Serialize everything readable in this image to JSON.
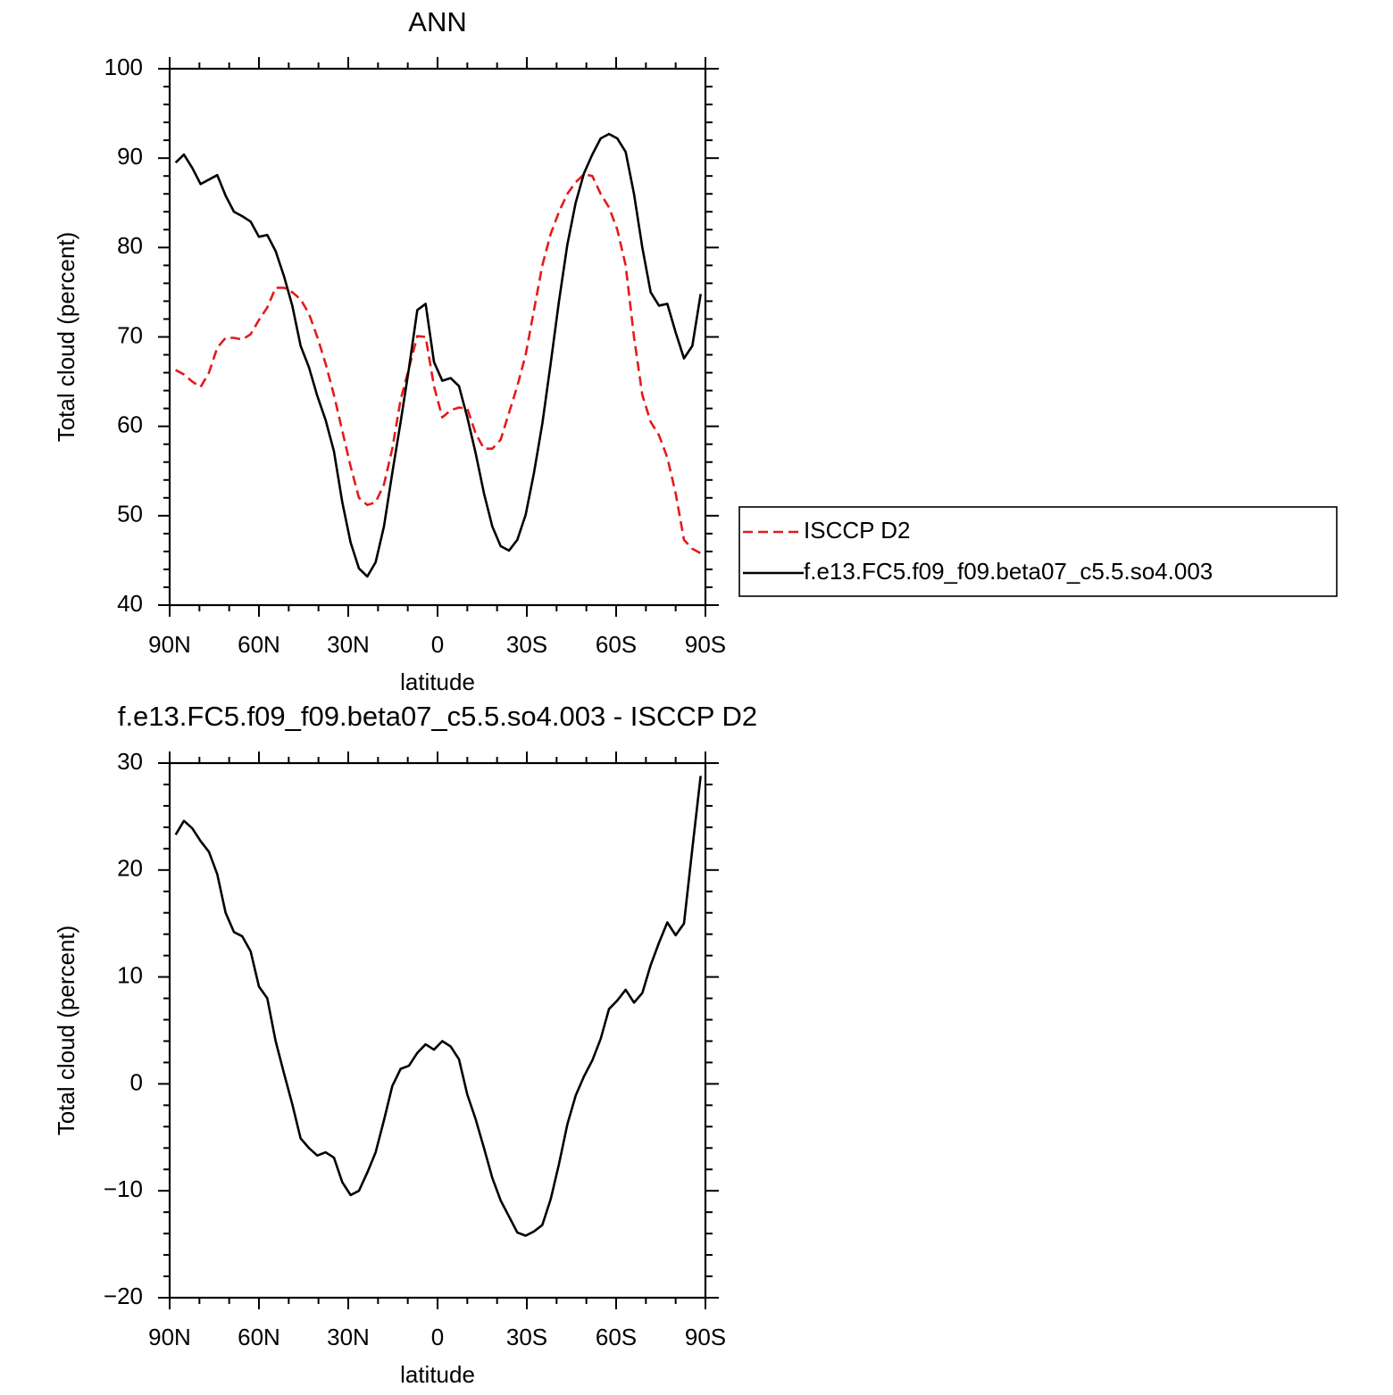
{
  "chart_data": [
    {
      "type": "line",
      "title": "ANN",
      "xlabel": "latitude",
      "ylabel": "Total cloud (percent)",
      "x": [
        88,
        85.2,
        82.4,
        79.6,
        76.8,
        74,
        71.2,
        68.4,
        65.6,
        62.8,
        60,
        57.2,
        54.4,
        51.6,
        48.8,
        46,
        43.2,
        40.4,
        37.6,
        34.8,
        32,
        29.2,
        26.4,
        23.6,
        20.8,
        18,
        15.2,
        12.4,
        9.6,
        6.8,
        4,
        1.2,
        -1.6,
        -4.4,
        -7.2,
        -10,
        -12.8,
        -15.6,
        -18.4,
        -21.2,
        -24,
        -26.8,
        -29.6,
        -32.4,
        -35.2,
        -38,
        -40.8,
        -43.6,
        -46.4,
        -49.2,
        -52,
        -54.8,
        -57.6,
        -60.4,
        -63.2,
        -66,
        -68.8,
        -71.6,
        -74.4,
        -77.2,
        -80,
        -82.8,
        -85.6,
        -88.4
      ],
      "xlim": [
        90,
        -90
      ],
      "xticks": [
        {
          "value": 90,
          "label": "90N"
        },
        {
          "value": 60,
          "label": "60N"
        },
        {
          "value": 30,
          "label": "30N"
        },
        0,
        {
          "value": -30,
          "label": "30S"
        },
        {
          "value": -60,
          "label": "60S"
        },
        {
          "value": -90,
          "label": "90S"
        }
      ],
      "xminorticks": [
        80,
        70,
        50,
        40,
        20,
        10,
        -10,
        -20,
        -40,
        -50,
        -70,
        -80
      ],
      "ylim": [
        40,
        100
      ],
      "yticks": [
        40,
        50,
        60,
        70,
        80,
        90,
        100
      ],
      "yminorticks": [
        42,
        44,
        46,
        48,
        52,
        54,
        56,
        58,
        62,
        64,
        66,
        68,
        72,
        74,
        76,
        78,
        82,
        84,
        86,
        88,
        92,
        94,
        96,
        98
      ],
      "legend": "right",
      "series": [
        {
          "name": "ISCCP D2",
          "color": "#e41a1c",
          "dashed": true,
          "values": [
            66.3,
            65.8,
            65,
            64.4,
            66,
            68.8,
            69.9,
            69.9,
            69.7,
            70.3,
            71.9,
            73.3,
            75.5,
            75.5,
            75,
            74.2,
            72.6,
            70,
            67,
            63.5,
            59.5,
            55.5,
            52,
            51.2,
            51.5,
            53.5,
            57.5,
            63,
            66.5,
            70.1,
            70,
            64.5,
            61,
            61.8,
            62.1,
            62,
            59.2,
            57.5,
            57.5,
            58.5,
            61.5,
            64.5,
            68,
            73,
            78,
            81.5,
            84,
            86,
            87.3,
            88.2,
            88,
            86,
            84.5,
            82,
            78,
            70,
            63.5,
            60.5,
            59,
            56.5,
            52.5,
            47.3,
            46.3,
            45.8
          ]
        },
        {
          "name": "f.e13.FC5.f09_f09.beta07_c5.5.so4.003",
          "color": "#000000",
          "dashed": false,
          "values": [
            89.5,
            90.4,
            88.9,
            87.1,
            87.6,
            88.1,
            85.8,
            84,
            83.5,
            82.9,
            81.2,
            81.4,
            79.6,
            76.8,
            73.5,
            69,
            66.6,
            63.4,
            60.7,
            57.2,
            51.5,
            47,
            44.1,
            43.2,
            44.8,
            48.8,
            54.8,
            60.5,
            66.5,
            73,
            73.7,
            67.2,
            65.1,
            65.4,
            64.5,
            61,
            57,
            52.5,
            48.8,
            46.6,
            46.1,
            47.3,
            50.1,
            54.8,
            60.3,
            67,
            74,
            80.3,
            85,
            88.3,
            90.4,
            92.2,
            92.7,
            92.2,
            90.7,
            86,
            80,
            75,
            73.5,
            73.7,
            70.5,
            67.6,
            69,
            74.8
          ]
        }
      ]
    },
    {
      "type": "line",
      "title": "f.e13.FC5.f09_f09.beta07_c5.5.so4.003 - ISCCP D2",
      "xlabel": "latitude",
      "ylabel": "Total cloud (percent)",
      "x": [
        88,
        85.2,
        82.4,
        79.6,
        76.8,
        74,
        71.2,
        68.4,
        65.6,
        62.8,
        60,
        57.2,
        54.4,
        51.6,
        48.8,
        46,
        43.2,
        40.4,
        37.6,
        34.8,
        32,
        29.2,
        26.4,
        23.6,
        20.8,
        18,
        15.2,
        12.4,
        9.6,
        6.8,
        4,
        1.2,
        -1.6,
        -4.4,
        -7.2,
        -10,
        -12.8,
        -15.6,
        -18.4,
        -21.2,
        -24,
        -26.8,
        -29.6,
        -32.4,
        -35.2,
        -38,
        -40.8,
        -43.6,
        -46.4,
        -49.2,
        -52,
        -54.8,
        -57.6,
        -60.4,
        -63.2,
        -66,
        -68.8,
        -71.6,
        -74.4,
        -77.2,
        -80,
        -82.8,
        -85.6,
        -88.4
      ],
      "xlim": [
        90,
        -90
      ],
      "xticks": [
        {
          "value": 90,
          "label": "90N"
        },
        {
          "value": 60,
          "label": "60N"
        },
        {
          "value": 30,
          "label": "30N"
        },
        0,
        {
          "value": -30,
          "label": "30S"
        },
        {
          "value": -60,
          "label": "60S"
        },
        {
          "value": -90,
          "label": "90S"
        }
      ],
      "xminorticks": [
        80,
        70,
        50,
        40,
        20,
        10,
        -10,
        -20,
        -40,
        -50,
        -70,
        -80
      ],
      "ylim": [
        -20,
        30
      ],
      "yticks": [
        {
          "value": -20,
          "label": "−20"
        },
        {
          "value": -10,
          "label": "−10"
        },
        0,
        10,
        20,
        30
      ],
      "yminorticks": [
        -18,
        -16,
        -14,
        -12,
        -8,
        -6,
        -4,
        -2,
        2,
        4,
        6,
        8,
        12,
        14,
        16,
        18,
        22,
        24,
        26,
        28
      ],
      "series": [
        {
          "color": "#000000",
          "dashed": false,
          "values": [
            23.3,
            24.6,
            23.9,
            22.7,
            21.7,
            19.6,
            16,
            14.2,
            13.8,
            12.4,
            9.1,
            8,
            4,
            1,
            -1.9,
            -5.1,
            -6,
            -6.7,
            -6.4,
            -6.9,
            -9.2,
            -10.4,
            -10,
            -8.3,
            -6.4,
            -3.4,
            -0.2,
            1.4,
            1.7,
            2.9,
            3.7,
            3.2,
            4,
            3.5,
            2.3,
            -1,
            -3.3,
            -6,
            -8.8,
            -10.9,
            -12.4,
            -13.9,
            -14.2,
            -13.8,
            -13.2,
            -10.8,
            -7.5,
            -3.8,
            -1.1,
            0.7,
            2.2,
            4.2,
            7,
            7.8,
            8.8,
            7.6,
            8.5,
            11.1,
            13.2,
            15.1,
            13.9,
            15,
            22,
            28.8
          ]
        }
      ]
    }
  ]
}
